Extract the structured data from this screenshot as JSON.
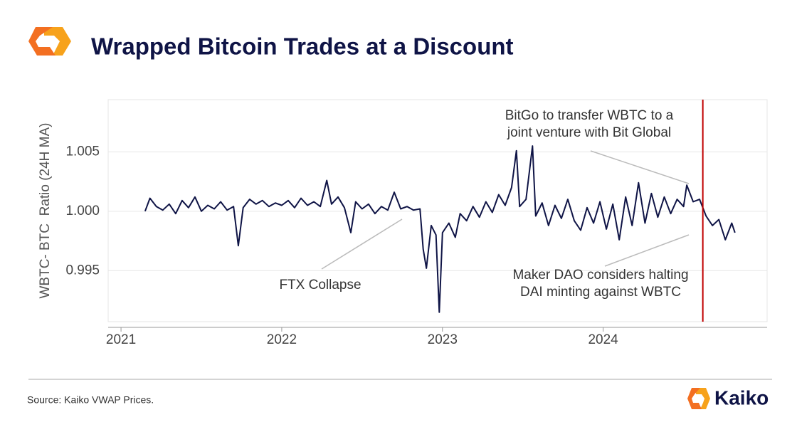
{
  "header": {
    "title": "Wrapped Bitcoin Trades at a Discount"
  },
  "chart_data": {
    "type": "line",
    "ylabel": "WBTC- BTC  Ratio (24H MA)",
    "x": [
      2021.15,
      2021.18,
      2021.22,
      2021.26,
      2021.3,
      2021.34,
      2021.38,
      2021.42,
      2021.46,
      2021.5,
      2021.54,
      2021.58,
      2021.62,
      2021.66,
      2021.7,
      2021.73,
      2021.76,
      2021.8,
      2021.84,
      2021.88,
      2021.92,
      2021.96,
      2022.0,
      2022.04,
      2022.08,
      2022.12,
      2022.16,
      2022.2,
      2022.24,
      2022.28,
      2022.31,
      2022.35,
      2022.39,
      2022.43,
      2022.46,
      2022.5,
      2022.54,
      2022.58,
      2022.62,
      2022.66,
      2022.7,
      2022.74,
      2022.78,
      2022.82,
      2022.86,
      2022.88,
      2022.9,
      2022.93,
      2022.96,
      2022.98,
      2023.0,
      2023.04,
      2023.08,
      2023.11,
      2023.15,
      2023.19,
      2023.23,
      2023.27,
      2023.31,
      2023.35,
      2023.39,
      2023.43,
      2023.46,
      2023.48,
      2023.52,
      2023.56,
      2023.58,
      2023.62,
      2023.66,
      2023.7,
      2023.74,
      2023.78,
      2023.82,
      2023.86,
      2023.9,
      2023.94,
      2023.98,
      2024.02,
      2024.06,
      2024.1,
      2024.14,
      2024.18,
      2024.22,
      2024.26,
      2024.3,
      2024.34,
      2024.38,
      2024.42,
      2024.46,
      2024.5,
      2024.52,
      2024.56,
      2024.6,
      2024.64,
      2024.68,
      2024.72,
      2024.76,
      2024.8,
      2024.82
    ],
    "series": [
      {
        "color": "#0f1446",
        "values": [
          1.0,
          1.0011,
          1.0004,
          1.0001,
          1.0006,
          0.9998,
          1.0009,
          1.0003,
          1.0012,
          1.0,
          1.0005,
          1.0002,
          1.0008,
          1.0001,
          1.0004,
          0.9971,
          1.0003,
          1.001,
          1.0006,
          1.0009,
          1.0004,
          1.0007,
          1.0005,
          1.0009,
          1.0003,
          1.0011,
          1.0005,
          1.0008,
          1.0004,
          1.0026,
          1.0006,
          1.0012,
          1.0003,
          0.9982,
          1.0008,
          1.0002,
          1.0006,
          0.9998,
          1.0004,
          1.0001,
          1.0016,
          1.0002,
          1.0004,
          1.0001,
          1.0002,
          0.9968,
          0.9952,
          0.9988,
          0.998,
          0.9915,
          0.9982,
          0.999,
          0.9978,
          0.9998,
          0.9992,
          1.0004,
          0.9995,
          1.0008,
          0.9999,
          1.0014,
          1.0005,
          1.002,
          1.0051,
          1.0004,
          1.001,
          1.0055,
          0.9996,
          1.0007,
          0.9988,
          1.0005,
          0.9994,
          1.001,
          0.9992,
          0.9984,
          1.0003,
          0.999,
          1.0008,
          0.9985,
          1.0006,
          0.9976,
          1.0012,
          0.9988,
          1.0024,
          0.999,
          1.0015,
          0.9995,
          1.0012,
          0.9998,
          1.001,
          1.0004,
          1.0022,
          1.0008,
          1.001,
          0.9996,
          0.9988,
          0.9993,
          0.9976,
          0.999,
          0.9982
        ]
      }
    ],
    "xlim": [
      2020.92,
      2025.02
    ],
    "xticks": [
      2021,
      2022,
      2023,
      2024
    ],
    "ylim": [
      0.9907,
      1.0094
    ],
    "yticks": [
      0.995,
      {
        "value": 1,
        "label": "1.000"
      },
      1.005
    ],
    "grid": true,
    "vline": {
      "value": 2024.62,
      "color": "#c00000"
    },
    "annotations": [
      {
        "lines": [
          "BitGo to transfer WBTC to a",
          "joint venture with Bit Global"
        ]
      },
      {
        "lines": [
          "FTX Collapse"
        ]
      },
      {
        "lines": [
          "Maker DAO considers halting",
          "DAI minting against WBTC"
        ]
      }
    ]
  },
  "footer": {
    "source": "Source: Kaiko VWAP Prices.",
    "brand": "Kaiko"
  }
}
